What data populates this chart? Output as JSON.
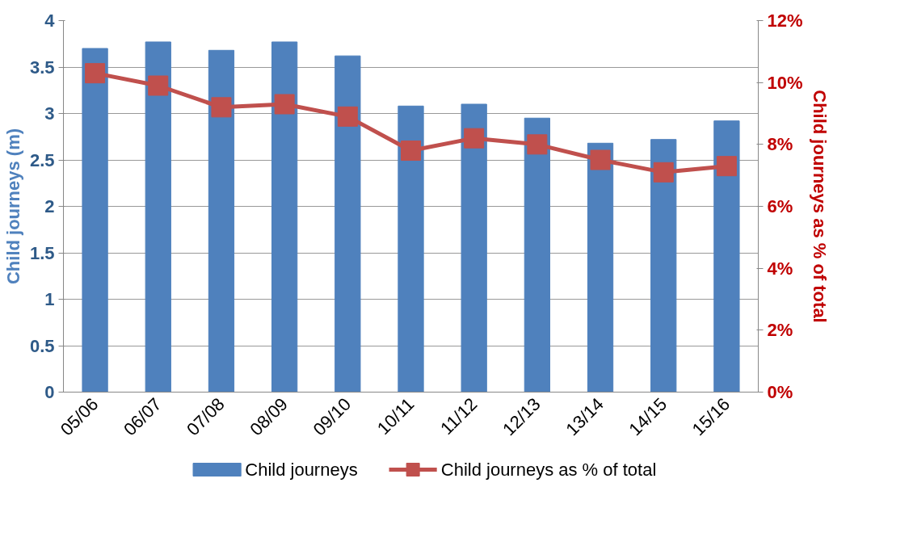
{
  "chart_data": {
    "type": "bar",
    "categories": [
      "05/06",
      "06/07",
      "07/08",
      "08/09",
      "09/10",
      "10/11",
      "11/12",
      "12/13",
      "13/14",
      "14/15",
      "15/16"
    ],
    "ylabel": "Child journeys (m)",
    "y2label": "Child journeys as % of total",
    "ylim": [
      0,
      4
    ],
    "yticks": [
      0,
      0.5,
      1,
      1.5,
      2,
      2.5,
      3,
      3.5,
      4
    ],
    "y2lim": [
      0,
      12
    ],
    "y2ticks": [
      {
        "value": 0,
        "label": "0%"
      },
      {
        "value": 2,
        "label": "2%"
      },
      {
        "value": 4,
        "label": "4%"
      },
      {
        "value": 6,
        "label": "6%"
      },
      {
        "value": 8,
        "label": "8%"
      },
      {
        "value": 10,
        "label": "10%"
      },
      {
        "value": 12,
        "label": "12%"
      }
    ],
    "series": [
      {
        "name": "Child journeys",
        "color": "#4f81bd",
        "values": [
          3.7,
          3.77,
          3.68,
          3.77,
          3.62,
          3.08,
          3.1,
          2.95,
          2.68,
          2.72,
          2.92
        ]
      },
      {
        "name": "Child journeys as % of total",
        "type": "line",
        "axis": "y2",
        "color": "#c0504d",
        "marker": "square",
        "values": [
          10.3,
          9.9,
          9.2,
          9.3,
          8.9,
          7.8,
          8.2,
          8.0,
          7.5,
          7.1,
          7.3
        ]
      }
    ],
    "grid": "y",
    "legend": "bottom"
  }
}
